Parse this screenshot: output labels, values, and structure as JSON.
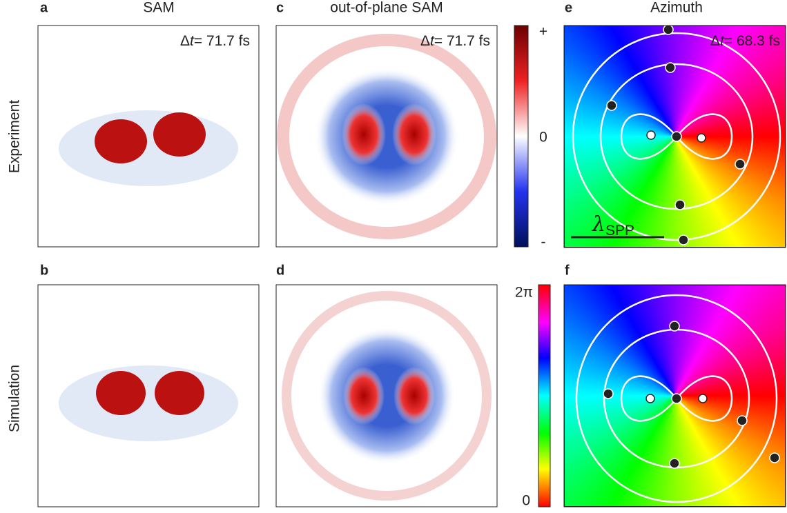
{
  "columns": [
    {
      "title": "SAM"
    },
    {
      "title": "out-of-plane SAM"
    },
    {
      "title": "Azimuth"
    }
  ],
  "rows": [
    {
      "label": "Experiment"
    },
    {
      "label": "Simulation"
    }
  ],
  "panels": [
    {
      "letter": "a",
      "annotation": {
        "symbol": "Δ",
        "variable": "t",
        "rest": "= 71.7 fs"
      }
    },
    {
      "letter": "b"
    },
    {
      "letter": "c",
      "annotation": {
        "symbol": "Δ",
        "variable": "t",
        "rest": "= 71.7 fs"
      }
    },
    {
      "letter": "d"
    },
    {
      "letter": "e",
      "annotation": {
        "symbol": "Δ",
        "variable": "t",
        "rest": "= 68.3 fs"
      },
      "scale_bar": {
        "symbol": "λ",
        "subscript": "SPP"
      }
    },
    {
      "letter": "f"
    }
  ],
  "colorbars": [
    {
      "top": "+",
      "middle": "0",
      "bottom": "-"
    },
    {
      "top": "2π",
      "bottom": "0"
    }
  ]
}
